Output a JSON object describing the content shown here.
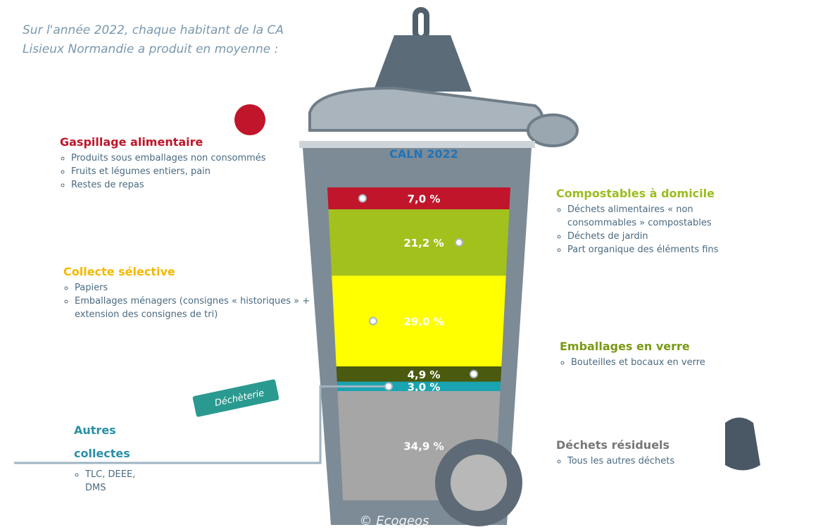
{
  "chart_data": {
    "type": "stacked-bin",
    "title": [
      "Sur l'année 2022, chaque habitant de la CA",
      "Lisieux Normandie a produit en moyenne :"
    ],
    "bin_label": "CALN 2022",
    "credit": "© Ecogeos",
    "badge": "Déchèterie",
    "series": [
      {
        "name": "Gaspillage alimentaire",
        "color": "#c0152a",
        "label_color": "#c0152a",
        "values": [
          7.0
        ],
        "value_labels": [
          "7,0 %"
        ],
        "items": [
          "Produits sous emballages non consommés",
          "Fruits et légumes entiers, pain",
          "Restes de repas"
        ]
      },
      {
        "name": "Compostables à domicile",
        "color": "#a3c11c",
        "label_color": "#9bbd1e",
        "values": [
          21.2
        ],
        "value_labels": [
          "21,2 %"
        ],
        "items": [
          "Déchets alimentaires « non consommables » compostables",
          "Déchets de jardin",
          "Part organique des éléments fins"
        ]
      },
      {
        "name": "Collecte sélective",
        "color": "#ffff00",
        "label_color": "#f5b800",
        "values": [
          29.0
        ],
        "value_labels": [
          "29,0 %"
        ],
        "items": [
          "Papiers",
          "Emballages ménagers (consignes « historiques » + extension des consignes de tri)"
        ]
      },
      {
        "name": "Emballages en verre",
        "color": "#4a5a0f",
        "label_color": "#7a9a14",
        "values": [
          4.9
        ],
        "value_labels": [
          "4,9 %"
        ],
        "items": [
          "Bouteilles et bocaux en verre"
        ]
      },
      {
        "name": "Autres collectes",
        "color": "#1aa3b1",
        "label_color": "#2a8fa8",
        "values": [
          3.0
        ],
        "value_labels": [
          "3,0 %"
        ],
        "items": [
          "TLC, DEEE, DMS"
        ]
      },
      {
        "name": "Déchets résiduels",
        "color": "#a6a6a6",
        "label_color": "#777777",
        "values": [
          34.9
        ],
        "value_labels": [
          "34,9 %"
        ],
        "items": [
          "Tous les autres déchets"
        ]
      }
    ]
  }
}
